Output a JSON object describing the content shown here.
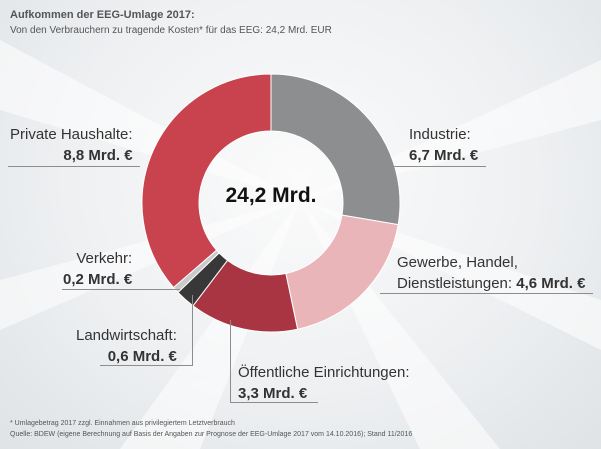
{
  "header": {
    "title": "Aufkommen der EEG-Umlage 2017:",
    "subtitle": "Von den Verbrauchern zu tragende Kosten* für das EEG: 24,2 Mrd. EUR"
  },
  "chart_data": {
    "type": "pie",
    "unit": "Mrd. €",
    "total_label": "24,2 Mrd.",
    "categories": [
      "Industrie",
      "Gewerbe, Handel, Dienstleistungen",
      "Öffentliche Einrichtungen",
      "Landwirtschaft",
      "Verkehr",
      "Private Haushalte"
    ],
    "values": [
      6.7,
      4.6,
      3.3,
      0.6,
      0.2,
      8.8
    ],
    "colors": [
      "#8d8e90",
      "#eab5b9",
      "#a93442",
      "#383838",
      "#c9cacc",
      "#c8434e"
    ]
  },
  "labels": {
    "industrie": {
      "name": "Industrie:",
      "value": "6,7 Mrd. €"
    },
    "gewerbe": {
      "name": "Gewerbe, Handel,",
      "name2": "Dienstleistungen:",
      "value": "4,6 Mrd. €"
    },
    "oeffentlich": {
      "name": "Öffentliche Einrichtungen:",
      "value": "3,3 Mrd. €"
    },
    "landwirtschaft": {
      "name": "Landwirtschaft:",
      "value": "0,6 Mrd. €"
    },
    "verkehr": {
      "name": "Verkehr:",
      "value": "0,2 Mrd. €"
    },
    "haushalte": {
      "name": "Private Haushalte:",
      "value": "8,8 Mrd. €"
    }
  },
  "footnotes": {
    "line1": "* Umlagebetrag 2017 zzgl. Einnahmen aus privilegiertem Letztverbrauch",
    "line2": "Quelle: BDEW (eigene Berechnung auf Basis der Angaben zur Prognose der EEG-Umlage 2017 vom 14.10.2016); Stand 11/2016"
  }
}
